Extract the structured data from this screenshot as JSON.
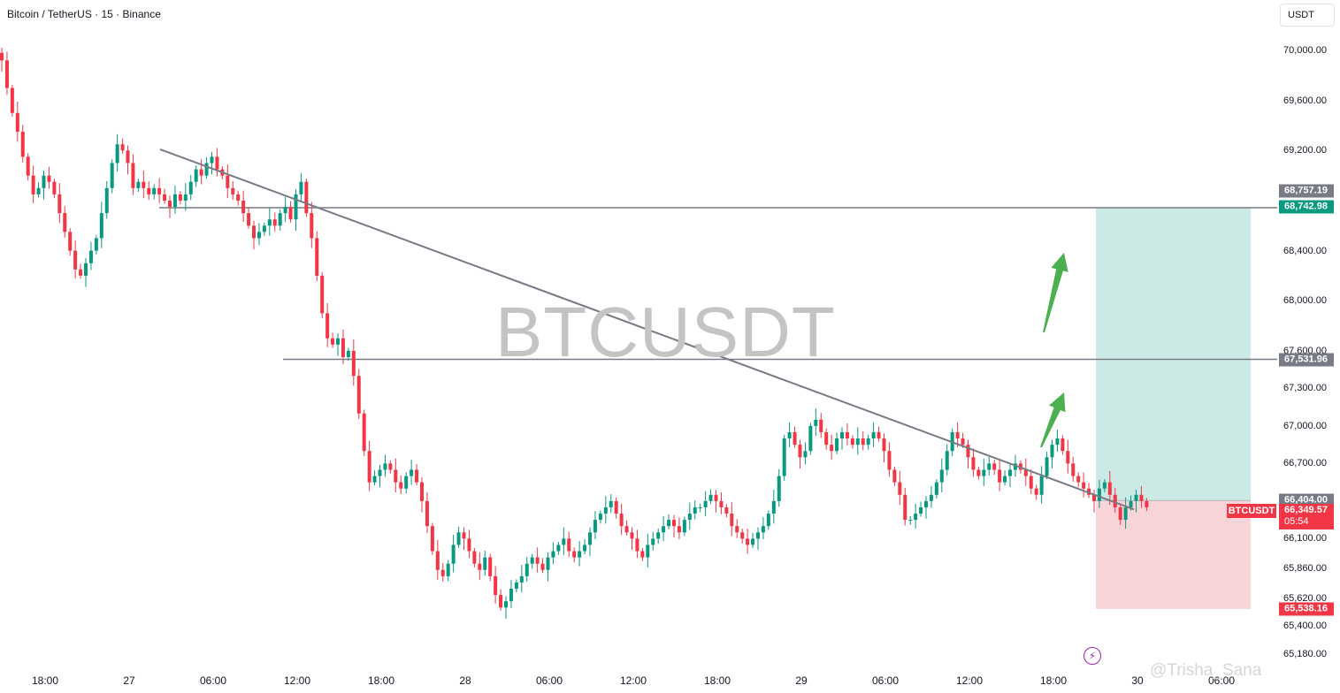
{
  "header": {
    "title": "Bitcoin / TetherUS · 15 · Binance",
    "currency": "USDT"
  },
  "watermark": "BTCUSDT",
  "signature": "@Trisha_Sana",
  "icons": {
    "lightning": "lightning-icon"
  },
  "colors": {
    "up": "#089981",
    "down": "#f23645",
    "target_zone": "#cceae5",
    "stop_zone": "#f9d4d8",
    "line": "#787b86",
    "arrow": "#4caf50",
    "tag_gray": "#787b86",
    "tag_green": "#089981",
    "tag_red": "#f23645"
  },
  "chart_data": {
    "type": "candlestick",
    "title": "Bitcoin / TetherUS · 15 · Binance",
    "symbol": "BTCUSDT",
    "timeframe": "15",
    "exchange": "Binance",
    "price_ticks": [
      "70,000.00",
      "69,600.00",
      "69,200.00",
      "68,400.00",
      "68,000.00",
      "67,600.00",
      "67,300.00",
      "67,000.00",
      "66,700.00",
      "66,100.00",
      "65,860.00",
      "65,620.00",
      "65,400.00",
      "65,180.00"
    ],
    "time_ticks": [
      "18:00",
      "27",
      "06:00",
      "12:00",
      "18:00",
      "28",
      "06:00",
      "12:00",
      "18:00",
      "29",
      "06:00",
      "12:00",
      "18:00",
      "30",
      "06:00"
    ],
    "price_tags": [
      {
        "value": "68,757.19",
        "price": 68757.19,
        "color": "gray"
      },
      {
        "value": "68,742.98",
        "price": 68742.98,
        "color": "green"
      },
      {
        "value": "67,531.96",
        "price": 67531.96,
        "color": "gray"
      },
      {
        "value": "66,404.00",
        "price": 66404.0,
        "color": "gray"
      },
      {
        "value": "65,538.16",
        "price": 65538.16,
        "color": "red"
      }
    ],
    "last_price": {
      "symbol": "BTCUSDT",
      "value": "66,349.57",
      "countdown": "05:54",
      "price": 66349.57
    },
    "horizontal_lines": [
      68742.98,
      67531.96
    ],
    "trendline": {
      "from": {
        "time": "26 23:00",
        "price": 69210
      },
      "to": {
        "time": "29 21:00",
        "price": 66390
      }
    },
    "position": {
      "type": "long",
      "entry": 66404.0,
      "target": 68742.98,
      "stop": 65538.16
    },
    "candles_close": [
      69920,
      69700,
      69500,
      69350,
      69150,
      69000,
      68850,
      68900,
      69000,
      68950,
      68850,
      68700,
      68550,
      68400,
      68250,
      68200,
      68300,
      68400,
      68500,
      68700,
      68900,
      69100,
      69250,
      69200,
      69100,
      68900,
      68950,
      68900,
      68850,
      68900,
      68850,
      68800,
      68750,
      68850,
      68800,
      68850,
      68950,
      69050,
      69000,
      69100,
      69150,
      69050,
      69000,
      68900,
      68850,
      68800,
      68700,
      68600,
      68500,
      68550,
      68600,
      68650,
      68600,
      68700,
      68750,
      68650,
      68850,
      68950,
      68700,
      68500,
      68200,
      67900,
      67700,
      67650,
      67700,
      67550,
      67600,
      67400,
      67100,
      66800,
      66550,
      66600,
      66650,
      66700,
      66650,
      66550,
      66500,
      66600,
      66650,
      66550,
      66400,
      66200,
      66000,
      65850,
      65800,
      65900,
      66050,
      66150,
      66100,
      66000,
      65900,
      65850,
      65950,
      65800,
      65650,
      65550,
      65600,
      65700,
      65750,
      65800,
      65900,
      65950,
      65900,
      65850,
      65950,
      66000,
      66050,
      66100,
      66000,
      65950,
      66000,
      66050,
      66150,
      66250,
      66300,
      66350,
      66400,
      66300,
      66200,
      66150,
      66100,
      66000,
      65950,
      66050,
      66100,
      66150,
      66200,
      66250,
      66200,
      66150,
      66250,
      66300,
      66350,
      66350,
      66400,
      66450,
      66400,
      66350,
      66300,
      66200,
      66150,
      66100,
      66050,
      66100,
      66150,
      66200,
      66300,
      66400,
      66600,
      66900,
      66950,
      66850,
      66750,
      66800,
      67000,
      67050,
      66950,
      66850,
      66800,
      66900,
      66950,
      66900,
      66850,
      66900,
      66850,
      66900,
      66950,
      66900,
      66800,
      66650,
      66550,
      66450,
      66250,
      66250,
      66300,
      66350,
      66400,
      66450,
      66550,
      66650,
      66800,
      66950,
      66900,
      66850,
      66750,
      66650,
      66600,
      66650,
      66700,
      66650,
      66550,
      66600,
      66650,
      66700,
      66650,
      66600,
      66500,
      66450,
      66600,
      66750,
      66850,
      66900,
      66800,
      66700,
      66600,
      66550,
      66500,
      66450,
      66400,
      66500,
      66550,
      66450,
      66350,
      66250,
      66350,
      66400,
      66450,
      66400,
      66350
    ],
    "y_range": [
      65180,
      70260
    ]
  }
}
